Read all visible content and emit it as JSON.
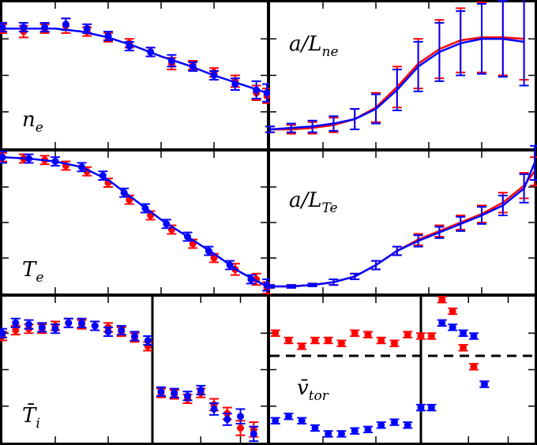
{
  "chart_data": [
    {
      "type": "scatter",
      "annotation": {
        "text": "n",
        "subscript": "e"
      },
      "xlim": [
        0,
        1
      ],
      "ylim": [
        0,
        1
      ],
      "xticks": [
        0.2,
        0.4,
        0.6,
        0.8
      ],
      "yticks": [
        0.25,
        0.5,
        0.75
      ],
      "series": [
        {
          "color": "#ff0000",
          "x": [
            0,
            0.08,
            0.16,
            0.24,
            0.32,
            0.4,
            0.48,
            0.56,
            0.64,
            0.72,
            0.8,
            0.88,
            0.96,
            1.0
          ],
          "values": [
            0.82,
            0.8,
            0.82,
            0.84,
            0.8,
            0.76,
            0.72,
            0.66,
            0.58,
            0.57,
            0.52,
            0.46,
            0.38,
            0.36
          ],
          "errors": [
            0.03,
            0.04,
            0.03,
            0.05,
            0.03,
            0.03,
            0.03,
            0.03,
            0.04,
            0.03,
            0.03,
            0.04,
            0.05,
            0.05
          ]
        },
        {
          "color": "#0000ff",
          "x": [
            0,
            0.08,
            0.16,
            0.24,
            0.32,
            0.4,
            0.48,
            0.56,
            0.64,
            0.72,
            0.8,
            0.88,
            0.96,
            1.0
          ],
          "values": [
            0.83,
            0.83,
            0.83,
            0.85,
            0.82,
            0.77,
            0.7,
            0.66,
            0.6,
            0.56,
            0.5,
            0.44,
            0.4,
            0.38
          ],
          "errors": [
            0.03,
            0.03,
            0.03,
            0.04,
            0.03,
            0.03,
            0.03,
            0.03,
            0.04,
            0.03,
            0.03,
            0.04,
            0.06,
            0.06
          ]
        },
        {
          "color": "#0000ff",
          "line": true,
          "x": [
            0,
            0.1,
            0.2,
            0.3,
            0.4,
            0.5,
            0.6,
            0.7,
            0.8,
            0.9,
            1.0
          ],
          "values": [
            0.82,
            0.82,
            0.82,
            0.8,
            0.76,
            0.7,
            0.63,
            0.57,
            0.5,
            0.44,
            0.38
          ]
        }
      ]
    },
    {
      "type": "line",
      "annotation": {
        "text": "a/L",
        "subscript": "ne"
      },
      "xlim": [
        0,
        1
      ],
      "ylim": [
        0,
        1
      ],
      "xticks": [
        0.2,
        0.4,
        0.6,
        0.8
      ],
      "yticks": [
        0.25,
        0.5,
        0.75
      ],
      "series": [
        {
          "color": "#ff0000",
          "line": true,
          "x": [
            0,
            0.08,
            0.16,
            0.24,
            0.32,
            0.4,
            0.48,
            0.56,
            0.64,
            0.72,
            0.8,
            0.88,
            0.96
          ],
          "values": [
            0.13,
            0.13,
            0.14,
            0.16,
            0.2,
            0.28,
            0.42,
            0.58,
            0.68,
            0.74,
            0.76,
            0.76,
            0.75
          ],
          "errors": [
            0.02,
            0.03,
            0.04,
            0.05,
            0.07,
            0.1,
            0.14,
            0.17,
            0.2,
            0.22,
            0.24,
            0.26,
            0.28
          ]
        },
        {
          "color": "#0000ff",
          "line": true,
          "x": [
            0,
            0.08,
            0.16,
            0.24,
            0.32,
            0.4,
            0.48,
            0.56,
            0.64,
            0.72,
            0.8,
            0.88,
            0.96
          ],
          "values": [
            0.13,
            0.14,
            0.15,
            0.17,
            0.2,
            0.27,
            0.4,
            0.56,
            0.66,
            0.72,
            0.75,
            0.75,
            0.73
          ],
          "errors": [
            0.02,
            0.03,
            0.04,
            0.05,
            0.07,
            0.1,
            0.14,
            0.17,
            0.2,
            0.22,
            0.24,
            0.26,
            0.3
          ]
        }
      ]
    },
    {
      "type": "scatter",
      "annotation": {
        "text": "T",
        "subscript": "e"
      },
      "xlim": [
        0,
        1
      ],
      "ylim": [
        0,
        1
      ],
      "xticks": [
        0.2,
        0.4,
        0.6,
        0.8
      ],
      "yticks": [
        0.25,
        0.5,
        0.75
      ],
      "series": [
        {
          "color": "#ff0000",
          "x": [
            0,
            0.08,
            0.16,
            0.24,
            0.32,
            0.4,
            0.48,
            0.56,
            0.64,
            0.72,
            0.8,
            0.88,
            0.96,
            1.0
          ],
          "values": [
            0.96,
            0.95,
            0.94,
            0.9,
            0.86,
            0.78,
            0.66,
            0.55,
            0.45,
            0.35,
            0.25,
            0.17,
            0.1,
            0.04
          ],
          "errors": [
            0.03,
            0.03,
            0.03,
            0.03,
            0.03,
            0.03,
            0.03,
            0.03,
            0.03,
            0.03,
            0.03,
            0.04,
            0.04,
            0.04
          ]
        },
        {
          "color": "#0000ff",
          "x": [
            0,
            0.1,
            0.2,
            0.3,
            0.38,
            0.46,
            0.54,
            0.62,
            0.7,
            0.78,
            0.86,
            0.94,
            1.0
          ],
          "values": [
            0.96,
            0.95,
            0.93,
            0.89,
            0.83,
            0.71,
            0.6,
            0.49,
            0.4,
            0.3,
            0.2,
            0.1,
            0.06
          ],
          "errors": [
            0.04,
            0.03,
            0.03,
            0.03,
            0.03,
            0.03,
            0.03,
            0.03,
            0.03,
            0.03,
            0.03,
            0.03,
            0.04
          ]
        },
        {
          "color": "#0000ff",
          "line": true,
          "x": [
            0,
            0.1,
            0.2,
            0.3,
            0.4,
            0.5,
            0.6,
            0.7,
            0.8,
            0.9,
            1.0
          ],
          "values": [
            0.96,
            0.95,
            0.93,
            0.89,
            0.8,
            0.66,
            0.52,
            0.4,
            0.28,
            0.15,
            0.05
          ]
        }
      ]
    },
    {
      "type": "line",
      "annotation": {
        "text": "a/L",
        "subscript": "Te"
      },
      "xlim": [
        0,
        1
      ],
      "ylim": [
        0,
        1
      ],
      "xticks": [
        0.2,
        0.4,
        0.6,
        0.8
      ],
      "yticks": [
        0.25,
        0.5,
        0.75
      ],
      "series": [
        {
          "color": "#ff0000",
          "line": true,
          "x": [
            0,
            0.08,
            0.16,
            0.24,
            0.32,
            0.4,
            0.48,
            0.56,
            0.64,
            0.72,
            0.8,
            0.88,
            0.96,
            1.0
          ],
          "values": [
            0.05,
            0.05,
            0.06,
            0.08,
            0.12,
            0.2,
            0.3,
            0.38,
            0.44,
            0.5,
            0.56,
            0.64,
            0.76,
            0.86
          ],
          "errors": [
            0.01,
            0.01,
            0.01,
            0.02,
            0.02,
            0.03,
            0.03,
            0.04,
            0.04,
            0.05,
            0.06,
            0.07,
            0.09,
            0.1
          ]
        },
        {
          "color": "#0000ff",
          "line": true,
          "x": [
            0,
            0.08,
            0.16,
            0.24,
            0.32,
            0.4,
            0.48,
            0.56,
            0.64,
            0.72,
            0.8,
            0.88,
            0.96,
            1.0
          ],
          "values": [
            0.05,
            0.05,
            0.06,
            0.08,
            0.12,
            0.2,
            0.3,
            0.37,
            0.43,
            0.49,
            0.55,
            0.62,
            0.74,
            0.92
          ],
          "errors": [
            0.01,
            0.01,
            0.01,
            0.02,
            0.02,
            0.03,
            0.03,
            0.04,
            0.04,
            0.05,
            0.06,
            0.07,
            0.1,
            0.12
          ]
        }
      ]
    },
    {
      "type": "scatter",
      "annotation": {
        "text": "T̄",
        "subscript": "i"
      },
      "xlim": [
        0,
        1
      ],
      "ylim": [
        0,
        1
      ],
      "xticks": [
        0.2,
        0.4,
        0.75,
        0.9
      ],
      "yticks": [
        0.25,
        0.5,
        0.75
      ],
      "series": [
        {
          "color": "#ff0000",
          "x": [
            0,
            0.05,
            0.1,
            0.15,
            0.2,
            0.25,
            0.3,
            0.35,
            0.4,
            0.45,
            0.5,
            0.55,
            0.6,
            0.65,
            0.7,
            0.75,
            0.8,
            0.85,
            0.9,
            0.95
          ],
          "values": [
            0.73,
            0.77,
            0.78,
            0.78,
            0.8,
            0.82,
            0.81,
            0.8,
            0.79,
            0.76,
            0.72,
            0.66,
            0.34,
            0.33,
            0.3,
            0.34,
            0.26,
            0.2,
            0.1,
            0.09
          ],
          "errors": [
            0.03,
            0.03,
            0.03,
            0.03,
            0.03,
            0.03,
            0.03,
            0.03,
            0.03,
            0.03,
            0.03,
            0.03,
            0.03,
            0.03,
            0.03,
            0.03,
            0.04,
            0.04,
            0.05,
            0.05
          ]
        },
        {
          "color": "#0000ff",
          "x": [
            0,
            0.05,
            0.1,
            0.15,
            0.2,
            0.25,
            0.3,
            0.35,
            0.4,
            0.45,
            0.5,
            0.55,
            0.6,
            0.65,
            0.7,
            0.75,
            0.8,
            0.85,
            0.9,
            0.95
          ],
          "values": [
            0.75,
            0.82,
            0.81,
            0.79,
            0.78,
            0.82,
            0.82,
            0.8,
            0.76,
            0.77,
            0.73,
            0.7,
            0.35,
            0.34,
            0.32,
            0.36,
            0.23,
            0.16,
            0.18,
            0.06
          ],
          "errors": [
            0.03,
            0.03,
            0.03,
            0.03,
            0.03,
            0.03,
            0.03,
            0.03,
            0.03,
            0.03,
            0.03,
            0.03,
            0.03,
            0.03,
            0.03,
            0.03,
            0.04,
            0.04,
            0.05,
            0.05
          ]
        }
      ]
    },
    {
      "type": "scatter",
      "annotation": {
        "text": "v̄",
        "subscript": "tor"
      },
      "xlim": [
        0,
        1
      ],
      "ylim": [
        0,
        1
      ],
      "xticks": [
        0.2,
        0.4,
        0.75,
        0.9
      ],
      "yticks": [
        0.25,
        0.5,
        0.75
      ],
      "series": [
        {
          "color": "#ff0000",
          "x": [
            0.02,
            0.07,
            0.12,
            0.17,
            0.22,
            0.27,
            0.32,
            0.37,
            0.42,
            0.47,
            0.52,
            0.57,
            0.61,
            0.65,
            0.69,
            0.73,
            0.77,
            0.81
          ],
          "values": [
            0.75,
            0.7,
            0.66,
            0.7,
            0.7,
            0.68,
            0.75,
            0.74,
            0.7,
            0.68,
            0.74,
            0.73,
            0.73,
            0.98,
            0.9,
            0.65,
            0.52,
            0.4
          ],
          "errors": [
            0.02,
            0.02,
            0.02,
            0.02,
            0.02,
            0.02,
            0.02,
            0.02,
            0.02,
            0.02,
            0.02,
            0.02,
            0.02,
            0.02,
            0.02,
            0.02,
            0.02,
            0.02
          ]
        },
        {
          "color": "#0000ff",
          "x": [
            0.02,
            0.07,
            0.12,
            0.17,
            0.22,
            0.27,
            0.32,
            0.37,
            0.42,
            0.47,
            0.52,
            0.57,
            0.61,
            0.65,
            0.69,
            0.73,
            0.77,
            0.81
          ],
          "values": [
            0.15,
            0.18,
            0.15,
            0.1,
            0.06,
            0.06,
            0.08,
            0.09,
            0.12,
            0.14,
            0.12,
            0.24,
            0.24,
            0.82,
            0.79,
            0.75,
            0.73,
            0.4
          ],
          "errors": [
            0.02,
            0.02,
            0.02,
            0.02,
            0.02,
            0.02,
            0.02,
            0.02,
            0.02,
            0.02,
            0.02,
            0.02,
            0.02,
            0.02,
            0.02,
            0.02,
            0.02,
            0.02
          ]
        }
      ]
    }
  ]
}
